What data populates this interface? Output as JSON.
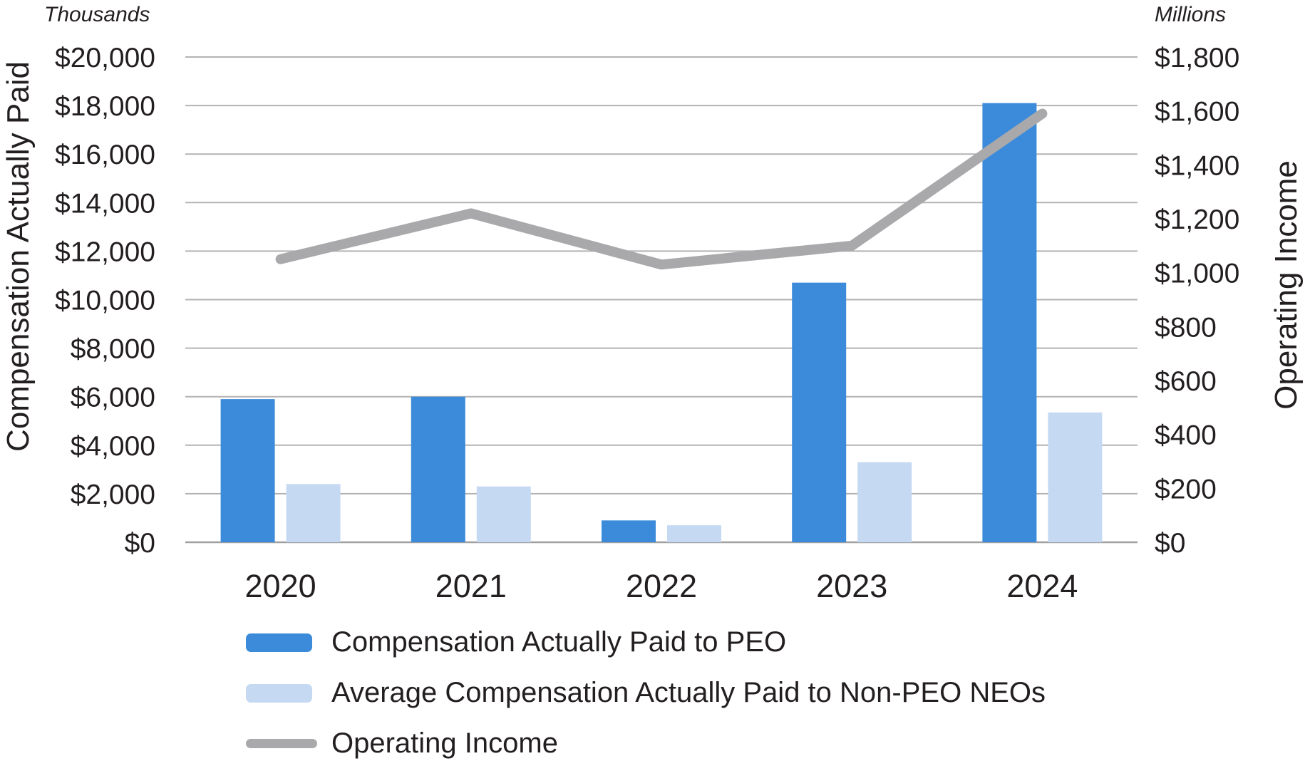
{
  "units": {
    "left": "Thousands",
    "right": "Millions"
  },
  "axis_titles": {
    "left": "Compensation Actually Paid",
    "right": "Operating Income"
  },
  "legend": {
    "items": [
      {
        "label": "Compensation Actually Paid to PEO",
        "swatch": "bar",
        "color": "#3C8BDA"
      },
      {
        "label": "Average Compensation Actually Paid to Non-PEO NEOs",
        "swatch": "bar",
        "color": "#C6D9F2"
      },
      {
        "label": "Operating Income",
        "swatch": "line",
        "color": "#A9A9AC"
      }
    ]
  },
  "colors": {
    "peo_bar": "#3C8BDA",
    "neo_bar": "#C6D9F2",
    "line": "#A9A9AC",
    "gridline": "#B3B3B3",
    "baseline": "#A0A0A0",
    "text": "#231F20"
  },
  "chart_data": {
    "type": "bar",
    "subtype": "grouped-bars-with-line-dual-axis",
    "categories": [
      "2020",
      "2021",
      "2022",
      "2023",
      "2024"
    ],
    "series": [
      {
        "name": "Compensation Actually Paid to PEO",
        "type": "bar",
        "axis": "left",
        "color": "#3C8BDA",
        "values": [
          5900,
          6000,
          900,
          10700,
          18100
        ]
      },
      {
        "name": "Average Compensation Actually Paid to Non-PEO NEOs",
        "type": "bar",
        "axis": "left",
        "color": "#C6D9F2",
        "values": [
          2400,
          2300,
          700,
          3300,
          5350
        ]
      },
      {
        "name": "Operating Income",
        "type": "line",
        "axis": "right",
        "color": "#A9A9AC",
        "values": [
          1050,
          1220,
          1030,
          1100,
          1590
        ]
      }
    ],
    "left_axis": {
      "unit": "Thousands",
      "title": "Compensation Actually Paid",
      "min": 0,
      "max": 20000,
      "step": 2000,
      "tick_prefix": "$"
    },
    "right_axis": {
      "unit": "Millions",
      "title": "Operating Income",
      "min": 0,
      "max": 1800,
      "step": 200,
      "tick_prefix": "$"
    },
    "grid": true,
    "legend_position": "bottom-left",
    "title": ""
  }
}
